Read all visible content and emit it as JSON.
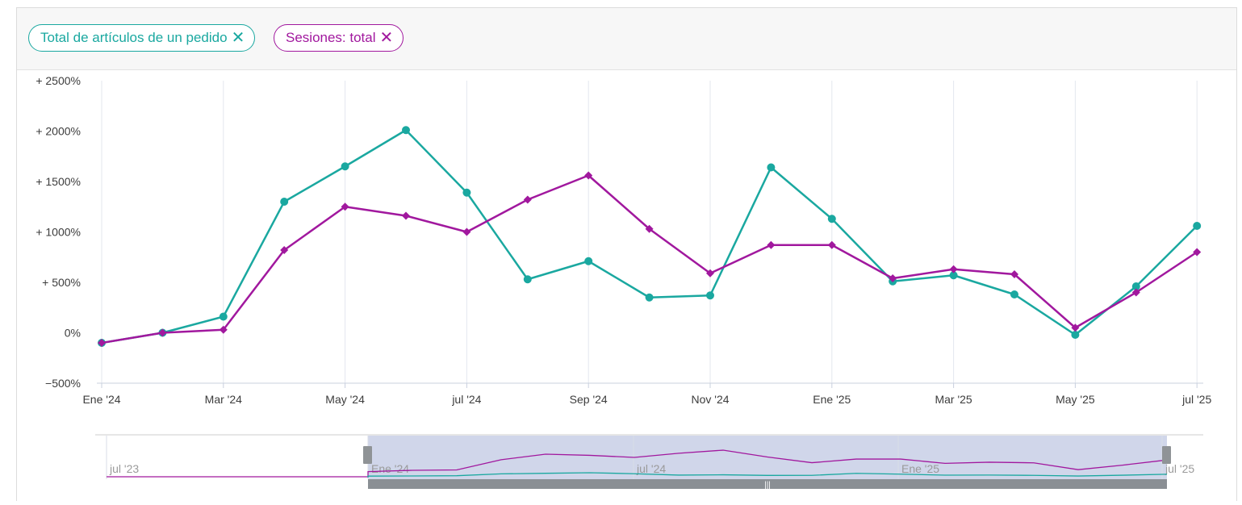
{
  "filters": [
    {
      "label": "Total de artículos de un pedido",
      "color": "#1aa8a0",
      "remove_icon": "close-icon"
    },
    {
      "label": "Sesiones: total",
      "color": "#a1189e",
      "remove_icon": "close-icon"
    }
  ],
  "chart_data": {
    "type": "line",
    "x": [
      "2024-01",
      "2024-02",
      "2024-03",
      "2024-04",
      "2024-05",
      "2024-06",
      "2024-07",
      "2024-08",
      "2024-09",
      "2024-10",
      "2024-11",
      "2024-12",
      "2025-01",
      "2025-02",
      "2025-03",
      "2025-04",
      "2025-05",
      "2025-06",
      "2025-07"
    ],
    "x_tick_labels": [
      "Ene '24",
      "Mar '24",
      "May '24",
      "jul '24",
      "Sep '24",
      "Nov '24",
      "Ene '25",
      "Mar '25",
      "May '25",
      "jul '25"
    ],
    "y_tick_labels": [
      "+ 2500%",
      "+ 2000%",
      "+ 1500%",
      "+ 1000%",
      "+ 500%",
      "0%",
      "−500%"
    ],
    "ylim": [
      -500,
      2500
    ],
    "y_unit": "%",
    "grid": {
      "vertical": true,
      "horizontal": false
    },
    "series": [
      {
        "name": "Total de artículos de un pedido",
        "color": "#1aa8a0",
        "marker": "circle",
        "values": [
          -100,
          0,
          160,
          1300,
          1650,
          2010,
          1390,
          530,
          710,
          350,
          370,
          1640,
          1130,
          510,
          570,
          380,
          -20,
          460,
          1060
        ]
      },
      {
        "name": "Sesiones: total",
        "color": "#a1189e",
        "marker": "diamond",
        "values": [
          -100,
          0,
          30,
          820,
          1250,
          1160,
          1000,
          1320,
          1560,
          1030,
          590,
          870,
          870,
          540,
          630,
          580,
          50,
          400,
          800
        ]
      }
    ],
    "navigator": {
      "labels": [
        "jul '23",
        "Ene '24",
        "jul '24",
        "Ene '25",
        "jul '25"
      ],
      "handle_icon": "grip-icon"
    }
  }
}
